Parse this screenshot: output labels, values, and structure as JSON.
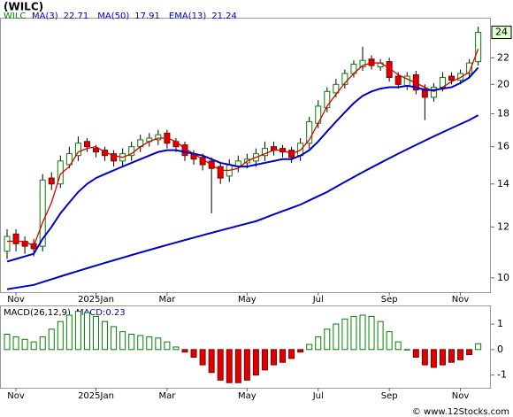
{
  "chart_data": [
    {
      "type": "candlestick",
      "title": "(WILC)",
      "symbol": "WILC",
      "last_label": "24",
      "categories": [
        null,
        "Nov",
        null,
        null,
        null,
        null,
        null,
        null,
        null,
        null,
        "2025Jan",
        null,
        null,
        null,
        null,
        null,
        null,
        null,
        "Mar",
        null,
        null,
        null,
        null,
        null,
        null,
        null,
        null,
        "May",
        null,
        null,
        null,
        null,
        null,
        null,
        null,
        "Jul",
        null,
        null,
        null,
        null,
        null,
        null,
        null,
        "Sep",
        null,
        null,
        null,
        null,
        null,
        null,
        null,
        "Nov",
        null,
        null
      ],
      "open": [
        11.0,
        11.7,
        11.4,
        11.3,
        11.2,
        14.3,
        14.0,
        15.0,
        15.5,
        16.3,
        15.9,
        15.8,
        15.6,
        15.2,
        15.5,
        16.0,
        16.3,
        16.4,
        16.8,
        16.3,
        16.1,
        15.6,
        15.4,
        15.2,
        14.9,
        14.4,
        14.9,
        15.1,
        15.2,
        15.5,
        16.0,
        15.9,
        15.8,
        15.5,
        16.2,
        17.4,
        18.4,
        19.4,
        20.0,
        20.8,
        21.3,
        21.9,
        21.3,
        21.7,
        20.6,
        19.9,
        20.7,
        19.7,
        19.1,
        19.8,
        20.6,
        20.3,
        20.8,
        21.7
      ],
      "high": [
        11.9,
        11.9,
        11.6,
        11.5,
        14.5,
        14.6,
        15.5,
        16.0,
        16.6,
        16.5,
        16.1,
        16.0,
        15.8,
        15.9,
        16.3,
        16.7,
        16.8,
        17.0,
        17.0,
        16.5,
        16.3,
        15.8,
        15.6,
        15.4,
        15.1,
        15.3,
        15.5,
        15.6,
        15.9,
        16.3,
        16.3,
        16.1,
        16.0,
        16.5,
        17.8,
        18.9,
        19.8,
        20.4,
        21.1,
        21.8,
        22.9,
        22.2,
        21.9,
        22.0,
        20.9,
        20.9,
        21.0,
        20.0,
        20.1,
        20.9,
        20.9,
        21.1,
        21.9,
        24.6
      ],
      "low": [
        10.7,
        11.0,
        10.9,
        10.8,
        11.0,
        13.7,
        13.8,
        14.8,
        15.2,
        15.7,
        15.4,
        15.2,
        14.9,
        14.9,
        15.2,
        15.7,
        16.0,
        16.1,
        15.9,
        15.7,
        15.2,
        15.0,
        14.7,
        12.6,
        14.0,
        14.1,
        14.6,
        14.8,
        14.9,
        15.2,
        15.5,
        15.4,
        15.1,
        15.2,
        15.9,
        17.1,
        18.1,
        19.1,
        19.7,
        20.5,
        21.0,
        21.1,
        21.0,
        20.2,
        19.7,
        19.6,
        19.3,
        17.6,
        18.8,
        19.5,
        20.0,
        20.0,
        20.5,
        21.4
      ],
      "close": [
        11.6,
        11.3,
        11.2,
        11.1,
        14.2,
        14.0,
        15.2,
        15.6,
        16.2,
        16.0,
        15.7,
        15.5,
        15.2,
        15.6,
        16.0,
        16.4,
        16.5,
        16.7,
        16.2,
        16.0,
        15.5,
        15.3,
        15.0,
        14.8,
        14.3,
        15.0,
        15.2,
        15.3,
        15.6,
        15.9,
        15.8,
        15.7,
        15.4,
        16.2,
        17.5,
        18.5,
        19.5,
        20.0,
        20.8,
        21.5,
        21.8,
        21.4,
        21.6,
        20.5,
        20.0,
        20.6,
        19.6,
        19.1,
        19.8,
        20.5,
        20.3,
        20.8,
        21.6,
        24.1
      ],
      "up_color": "#008000",
      "down_color": "#e00000",
      "series": [
        {
          "name": "MA(3)",
          "color": "#dd0000",
          "values": [
            11.4,
            11.4,
            11.4,
            11.2,
            12.2,
            13.1,
            14.5,
            14.9,
            15.7,
            15.9,
            16.0,
            15.7,
            15.5,
            15.4,
            15.6,
            16.0,
            16.3,
            16.5,
            16.5,
            16.3,
            15.9,
            15.6,
            15.3,
            15.0,
            14.7,
            14.7,
            14.8,
            15.2,
            15.4,
            15.6,
            15.8,
            15.8,
            15.6,
            15.8,
            16.4,
            17.4,
            18.5,
            19.3,
            20.1,
            20.8,
            21.4,
            21.6,
            21.6,
            21.2,
            20.7,
            20.4,
            20.1,
            19.8,
            19.5,
            19.8,
            20.2,
            20.5,
            20.9,
            22.71
          ]
        },
        {
          "name": "MA(50)",
          "color": "#0000cc",
          "values": [
            9.6,
            9.65,
            9.7,
            9.75,
            9.85,
            9.95,
            10.05,
            10.15,
            10.25,
            10.35,
            10.45,
            10.55,
            10.65,
            10.75,
            10.85,
            10.95,
            11.05,
            11.15,
            11.25,
            11.35,
            11.45,
            11.55,
            11.65,
            11.75,
            11.85,
            11.95,
            12.05,
            12.15,
            12.25,
            12.4,
            12.55,
            12.7,
            12.85,
            13.0,
            13.2,
            13.4,
            13.6,
            13.85,
            14.1,
            14.35,
            14.6,
            14.85,
            15.1,
            15.35,
            15.6,
            15.85,
            16.1,
            16.35,
            16.6,
            16.85,
            17.1,
            17.35,
            17.6,
            17.91
          ]
        },
        {
          "name": "EMA(13)",
          "color": "#0000cc",
          "values": [
            10.6,
            10.7,
            10.8,
            10.9,
            11.5,
            12.0,
            12.6,
            13.1,
            13.6,
            14.0,
            14.3,
            14.5,
            14.7,
            14.9,
            15.1,
            15.3,
            15.5,
            15.7,
            15.8,
            15.8,
            15.7,
            15.6,
            15.5,
            15.3,
            15.1,
            15.0,
            14.9,
            14.9,
            15.0,
            15.1,
            15.2,
            15.3,
            15.3,
            15.5,
            15.8,
            16.3,
            16.9,
            17.5,
            18.1,
            18.7,
            19.2,
            19.5,
            19.7,
            19.8,
            19.8,
            19.9,
            19.8,
            19.6,
            19.6,
            19.7,
            19.8,
            20.1,
            20.5,
            21.24
          ]
        }
      ],
      "log_scale": true,
      "ylim": [
        9.5,
        25.4
      ],
      "yticks": [
        10,
        12,
        14,
        16,
        18,
        20,
        22
      ]
    },
    {
      "type": "macd_histogram",
      "title": "MACD(26,12,9)",
      "last_label": "MACD:0.23",
      "values": [
        0.6,
        0.5,
        0.4,
        0.3,
        0.5,
        0.8,
        1.1,
        1.35,
        1.5,
        1.45,
        1.3,
        1.1,
        0.9,
        0.7,
        0.6,
        0.55,
        0.5,
        0.45,
        0.3,
        0.1,
        -0.1,
        -0.3,
        -0.6,
        -0.9,
        -1.2,
        -1.3,
        -1.3,
        -1.2,
        -1.0,
        -0.8,
        -0.6,
        -0.5,
        -0.35,
        -0.1,
        0.2,
        0.5,
        0.8,
        1.0,
        1.2,
        1.3,
        1.35,
        1.3,
        1.1,
        0.7,
        0.3,
        0.0,
        -0.3,
        -0.6,
        -0.7,
        -0.6,
        -0.5,
        -0.4,
        -0.2,
        0.23
      ],
      "up_color": "#008000",
      "down_color": "#e00000",
      "ylim": [
        -1.5,
        1.73
      ],
      "yticks": [
        -1,
        0,
        1
      ]
    }
  ],
  "footer": "© www.12Stocks.com"
}
